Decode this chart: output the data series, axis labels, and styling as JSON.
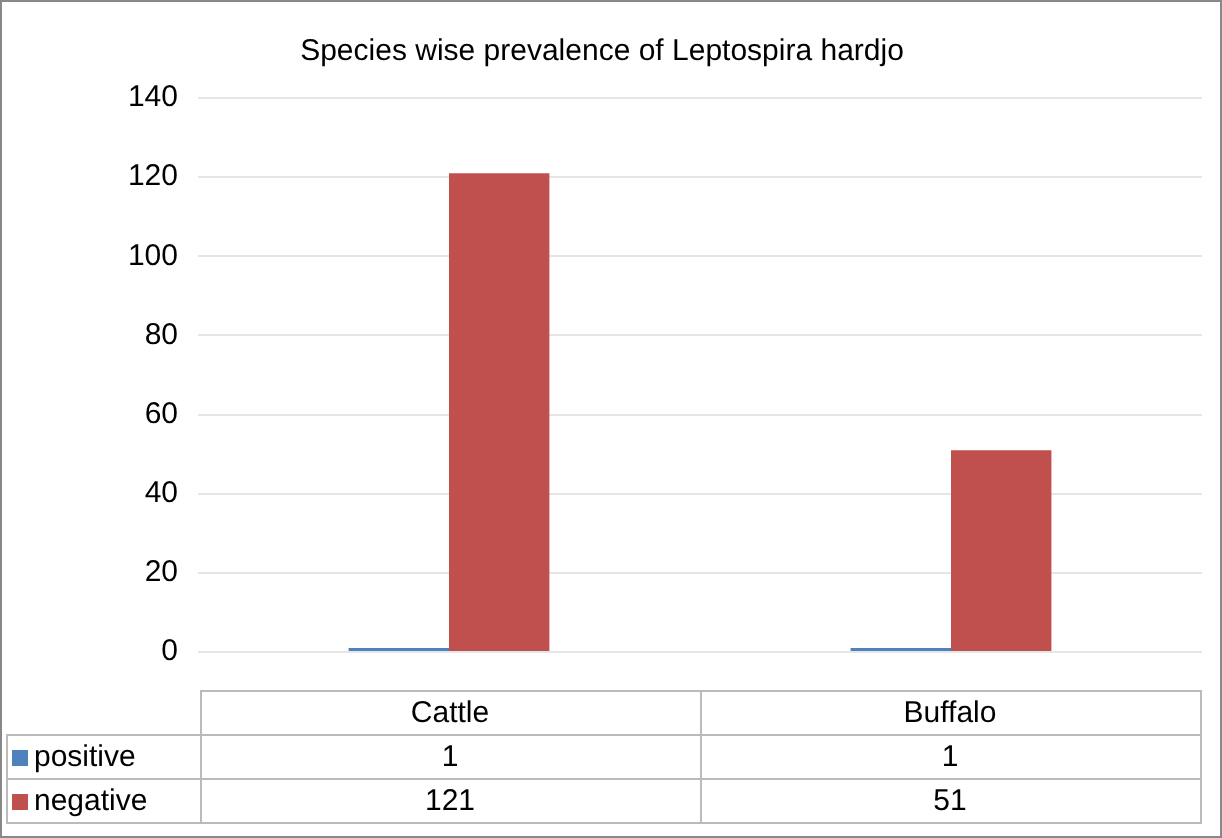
{
  "chart_data": {
    "type": "bar",
    "title": "Species wise prevalence of Leptospira hardjo",
    "categories": [
      "Cattle",
      "Buffalo"
    ],
    "series": [
      {
        "name": "positive",
        "color": "#4f81bd",
        "values": [
          1,
          1
        ]
      },
      {
        "name": "negative",
        "color": "#c0504d",
        "values": [
          121,
          51
        ]
      }
    ],
    "ylim": [
      0,
      140
    ],
    "yticks": [
      0,
      20,
      40,
      60,
      80,
      100,
      120,
      140
    ],
    "grid": "y",
    "legend": "bottom",
    "data_labels": true
  }
}
